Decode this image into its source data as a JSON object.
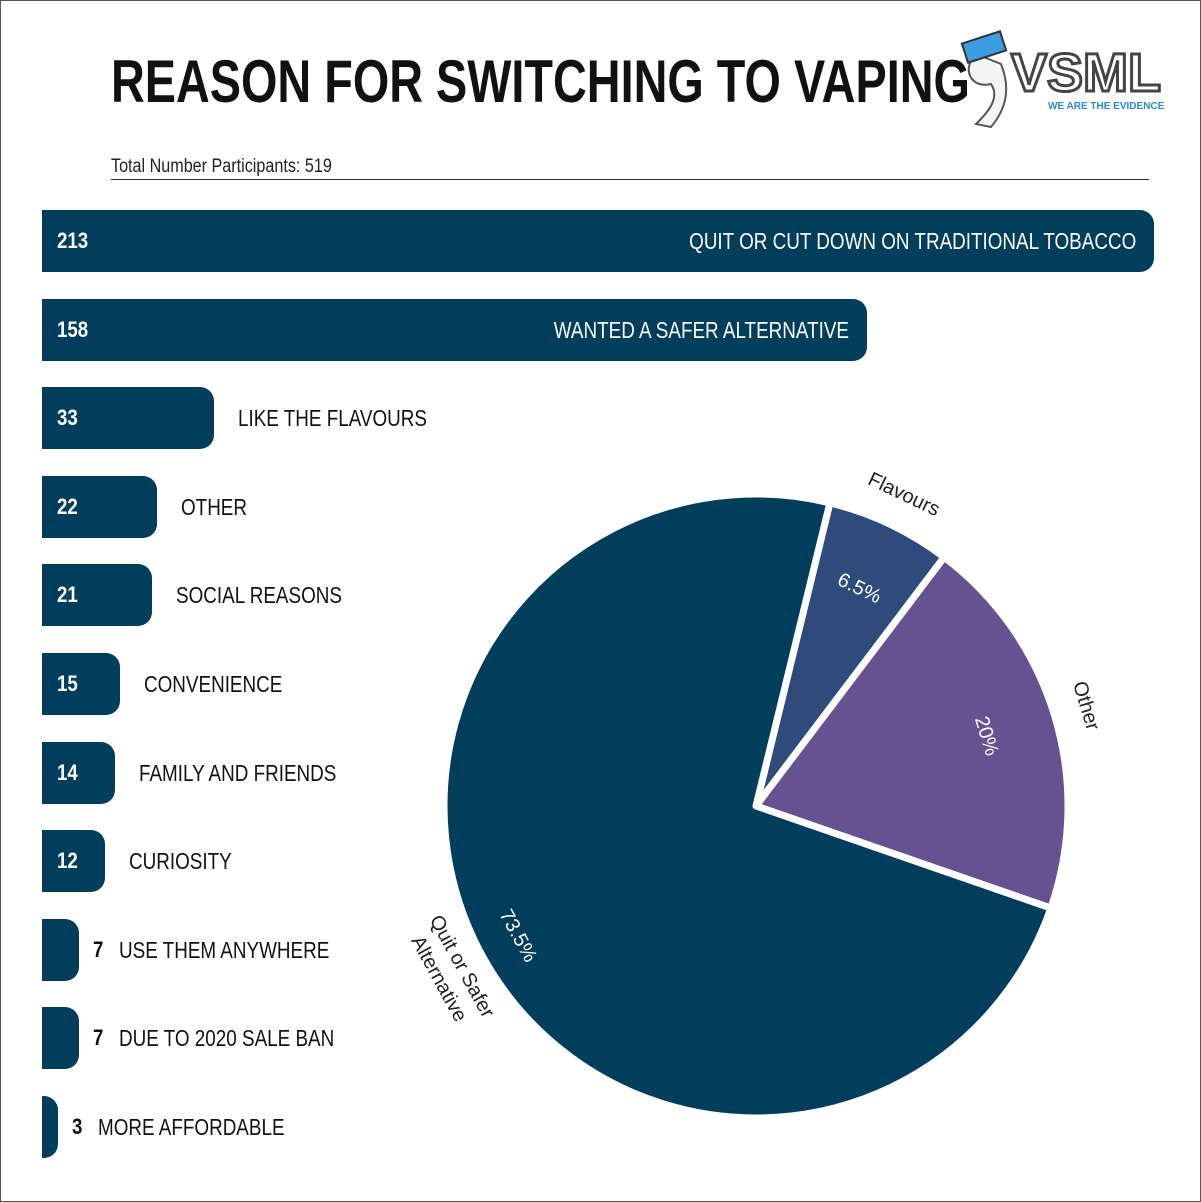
{
  "title": "REASON FOR SWITCHING TO VAPING",
  "subtitle": "Total Number Participants: 519",
  "logo": {
    "text": "VSML",
    "tagline": "WE ARE THE EVIDENCE"
  },
  "chart_data": [
    {
      "type": "bar",
      "orientation": "horizontal",
      "categories": [
        "QUIT OR CUT DOWN ON TRADITIONAL TOBACCO",
        "WANTED A SAFER ALTERNATIVE",
        "LIKE THE FLAVOURS",
        "OTHER",
        "SOCIAL REASONS",
        "CONVENIENCE",
        "FAMILY AND FRIENDS",
        "CURIOSITY",
        "USE THEM ANYWHERE",
        "DUE TO 2020 SALE BAN",
        "MORE AFFORDABLE"
      ],
      "values": [
        213,
        158,
        33,
        22,
        21,
        15,
        14,
        12,
        7,
        7,
        3
      ],
      "color": "#003e5c"
    },
    {
      "type": "pie",
      "slices": [
        {
          "label": "Flavours",
          "value": 6.5,
          "display": "6.5%",
          "color": "#2f4b7c"
        },
        {
          "label": "Other",
          "value": 20,
          "display": "20%",
          "color": "#665191"
        },
        {
          "label": "Quit or Safer Alternative",
          "value": 73.5,
          "display": "73.5%",
          "color": "#003e5c"
        }
      ]
    }
  ]
}
